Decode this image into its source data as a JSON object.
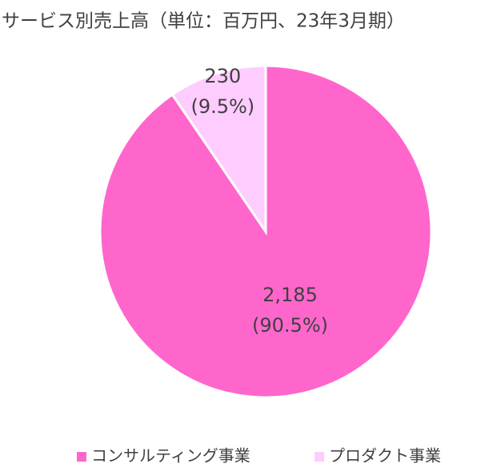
{
  "chart_data": {
    "type": "pie",
    "title": "サービス別売上高（単位：百万円、23年3月期）",
    "categories": [
      "コンサルティング事業",
      "プロダクト事業"
    ],
    "values": [
      2185,
      230
    ],
    "value_labels": [
      "2,185",
      "230"
    ],
    "percents": [
      90.5,
      9.5
    ],
    "percent_labels": [
      "(90.5%)",
      "(9.5%)"
    ],
    "colors": [
      "#ff66cc",
      "#ffccff"
    ],
    "legend": "bottom"
  }
}
